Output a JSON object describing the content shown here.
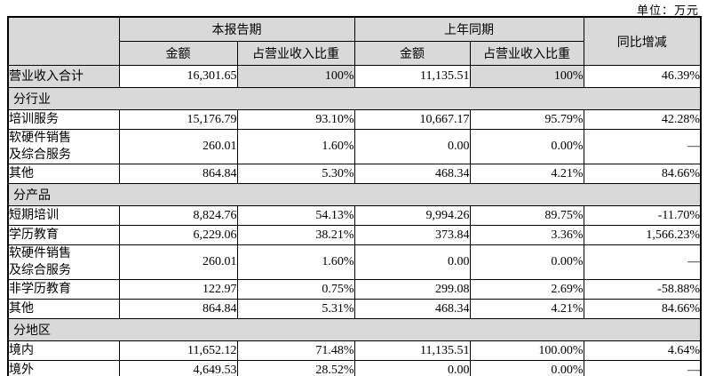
{
  "unit_label": "单位：万元",
  "colors": {
    "header_fill": "#d9d9d9",
    "border": "#000000",
    "text": "#000000"
  },
  "table": {
    "header": {
      "current_period": "本报告期",
      "prior_period": "上年同期",
      "yoy": "同比增减",
      "amount": "金额",
      "pct": "占营业收入比重"
    },
    "rows": [
      {
        "type": "data",
        "highlight": true,
        "label": "营业收入合计",
        "cells": [
          "16,301.65",
          "100%",
          "11,135.51",
          "100%",
          "46.39%"
        ]
      },
      {
        "type": "section",
        "label": "分行业"
      },
      {
        "type": "data",
        "label": "培训服务",
        "cells": [
          "15,176.79",
          "93.10%",
          "10,667.17",
          "95.79%",
          "42.28%"
        ]
      },
      {
        "type": "data",
        "label": "软硬件销售\n及综合服务",
        "cells": [
          "260.01",
          "1.60%",
          "0.00",
          "0.00%",
          "—"
        ]
      },
      {
        "type": "data",
        "label": "其他",
        "cells": [
          "864.84",
          "5.30%",
          "468.34",
          "4.21%",
          "84.66%"
        ]
      },
      {
        "type": "section",
        "label": "分产品"
      },
      {
        "type": "data",
        "label": "短期培训",
        "cells": [
          "8,824.76",
          "54.13%",
          "9,994.26",
          "89.75%",
          "-11.70%"
        ]
      },
      {
        "type": "data",
        "label": "学历教育",
        "cells": [
          "6,229.06",
          "38.21%",
          "373.84",
          "3.36%",
          "1,566.23%"
        ]
      },
      {
        "type": "data",
        "label": "软硬件销售\n及综合服务",
        "cells": [
          "260.01",
          "1.60%",
          "0.00",
          "0.00%",
          "—"
        ]
      },
      {
        "type": "data",
        "label": "非学历教育",
        "cells": [
          "122.97",
          "0.75%",
          "299.08",
          "2.69%",
          "-58.88%"
        ]
      },
      {
        "type": "data",
        "label": "其他",
        "cells": [
          "864.84",
          "5.31%",
          "468.34",
          "4.21%",
          "84.66%"
        ]
      },
      {
        "type": "section",
        "label": "分地区"
      },
      {
        "type": "data",
        "label": "境内",
        "cells": [
          "11,652.12",
          "71.48%",
          "11,135.51",
          "100.00%",
          "4.64%"
        ]
      },
      {
        "type": "data",
        "label": "境外",
        "cells": [
          "4,649.53",
          "28.52%",
          "0.00",
          "0.00%",
          "—"
        ]
      }
    ]
  }
}
